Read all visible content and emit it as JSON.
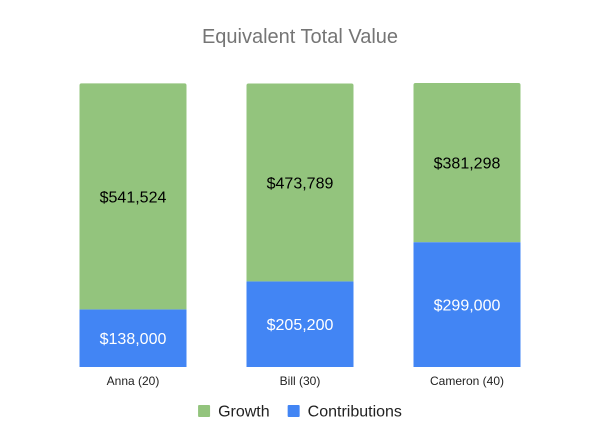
{
  "chart_data": {
    "type": "bar",
    "stacked": true,
    "title": "Equivalent Total Value",
    "xlabel": "",
    "ylabel": "",
    "categories": [
      "Anna (20)",
      "Bill (30)",
      "Cameron (40)"
    ],
    "series": [
      {
        "name": "Contributions",
        "color": "#4285f4",
        "values": [
          138000,
          205200,
          299000
        ],
        "labels": [
          "$138,000",
          "$205,200",
          "$299,000"
        ],
        "label_color": "#ffffff"
      },
      {
        "name": "Growth",
        "color": "#93c47d",
        "values": [
          541524,
          473789,
          381298
        ],
        "labels": [
          "$541,524",
          "$473,789",
          "$381,298"
        ],
        "label_color": "#000000"
      }
    ],
    "legend_order": [
      "Growth",
      "Contributions"
    ],
    "legend_position": "bottom",
    "grid": false
  }
}
